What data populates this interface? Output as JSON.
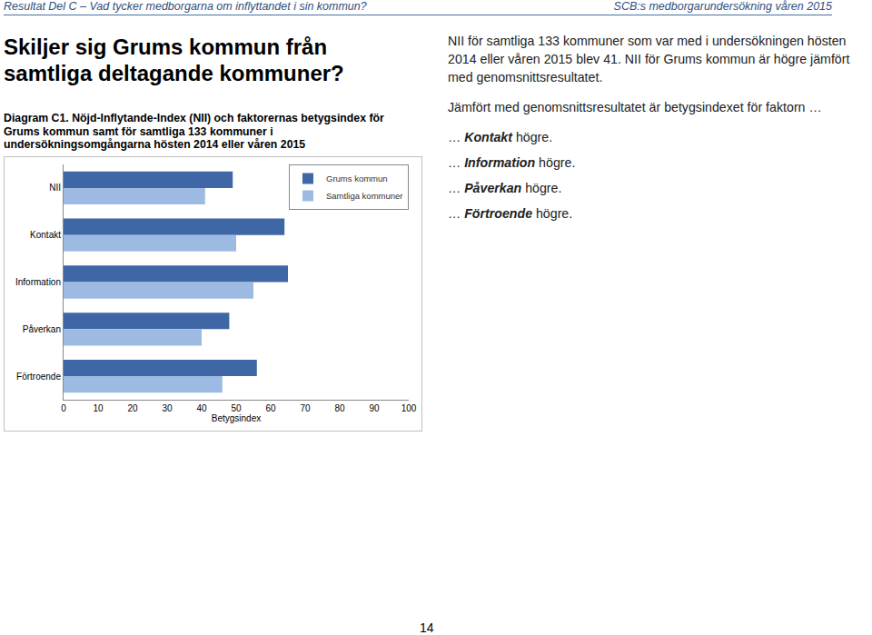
{
  "header": {
    "left": "Resultat Del C – Vad tycker medborgarna om inflyttandet i sin kommun?",
    "right": "SCB:s medborgarundersökning våren 2015"
  },
  "title": "Skiljer sig Grums kommun från samtliga deltagande kommuner?",
  "chart_data": {
    "type": "bar",
    "orientation": "horizontal",
    "title": "Diagram C1. Nöjd-Inflytande-Index (NII) och faktorernas betygsindex för Grums kommun samt för samtliga 133 kommuner i undersökningsomgångarna hösten 2014 eller våren 2015",
    "categories": [
      "NII",
      "Kontakt",
      "Information",
      "Påverkan",
      "Förtroende"
    ],
    "series": [
      {
        "name": "Grums kommun",
        "color": "#3f67a6",
        "values": [
          49,
          64,
          65,
          48,
          56
        ]
      },
      {
        "name": "Samtliga kommuner",
        "color": "#9dbbe2",
        "values": [
          41,
          50,
          55,
          40,
          46
        ]
      }
    ],
    "x_label": "Betygsindex",
    "xlim": [
      0,
      100
    ],
    "xticks": [
      0,
      10,
      20,
      30,
      40,
      50,
      60,
      70,
      80,
      90,
      100
    ],
    "legend": "upper right",
    "grid": false
  },
  "text": {
    "paragraphs": [
      "NII för samtliga 133 kommuner som var med i undersökningen hösten 2014 eller våren 2015 blev 41. NII för Grums kommun är högre jämfört med genomsnittsresultatet.",
      "Jämfört med genomsnittsresultatet är betygsindexet för faktorn …"
    ],
    "items": [
      {
        "prefix": "…",
        "factor": "Kontakt",
        "suffix": "högre."
      },
      {
        "prefix": "…",
        "factor": "Information",
        "suffix": "högre."
      },
      {
        "prefix": "…",
        "factor": "Påverkan",
        "suffix": "högre."
      },
      {
        "prefix": "…",
        "factor": "Förtroende",
        "suffix": "högre."
      }
    ]
  },
  "page": "14"
}
